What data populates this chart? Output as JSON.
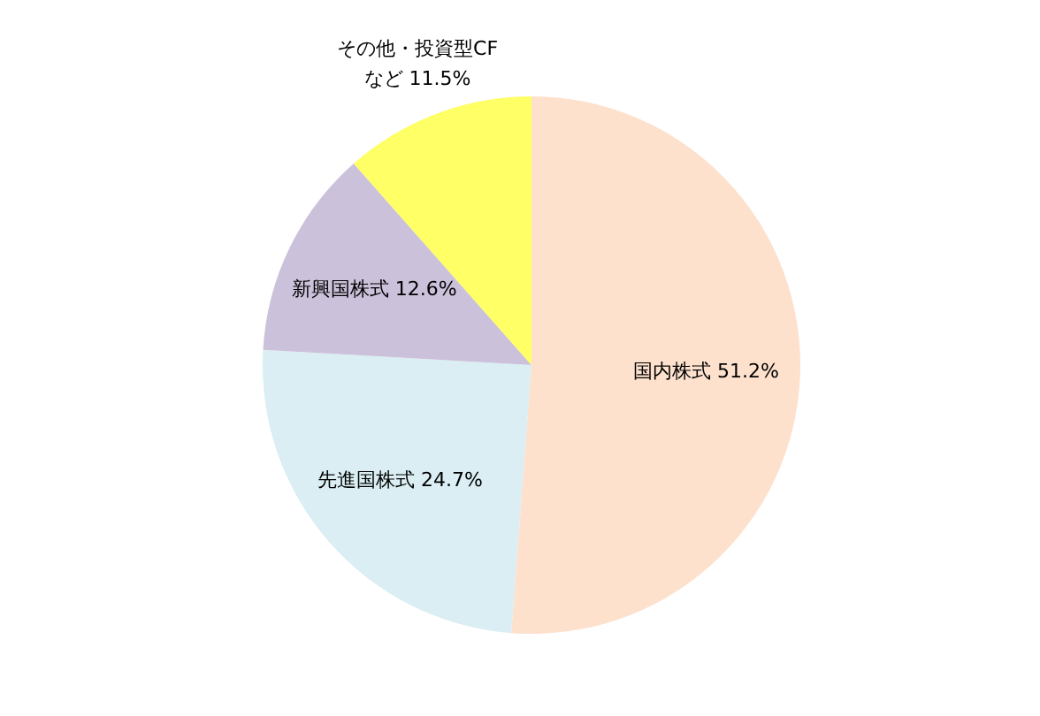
{
  "chart_data": {
    "type": "pie",
    "categories": [
      "国内株式",
      "先進国株式",
      "新興国株式",
      "その他・投資型CF\nなど"
    ],
    "values": [
      51.2,
      24.7,
      12.6,
      11.5
    ],
    "value_labels": [
      "51.2%",
      "24.7%",
      "12.6%",
      "11.5%"
    ],
    "colors": [
      "#fde1cd",
      "#daeef3",
      "#ccc1da",
      "#ffff66"
    ]
  }
}
